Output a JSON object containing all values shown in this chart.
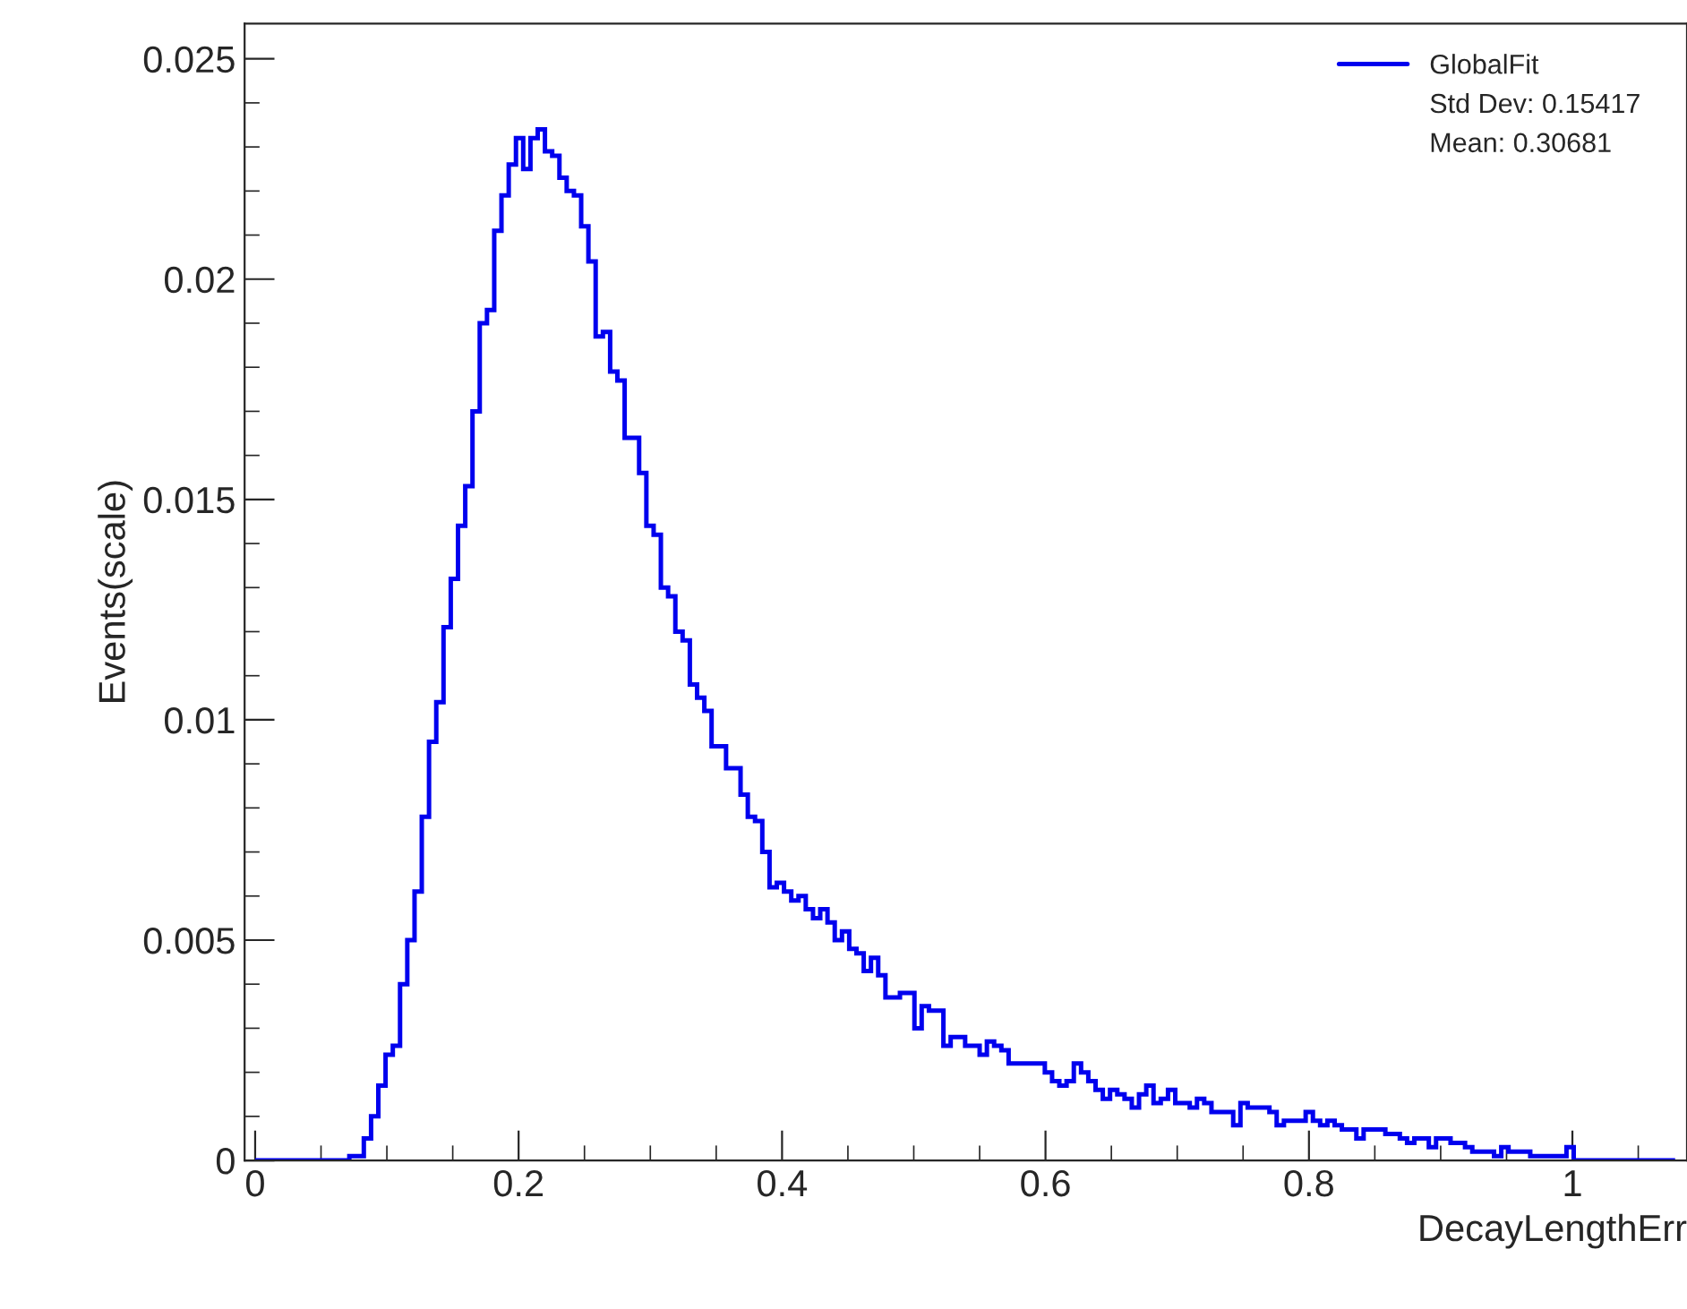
{
  "chart_data": {
    "type": "histogram",
    "xlabel": "DecayLengthErr",
    "ylabel": "Events(scale)",
    "annotations": [
      "Std Dev: 0.15417",
      "Mean: 0.30681"
    ],
    "legend": "top right",
    "xlim": [
      -0.008,
      1.087
    ],
    "xticks": [
      0,
      0.2,
      0.4,
      0.6,
      0.8,
      1
    ],
    "ylim": [
      0,
      0.0258
    ],
    "yticks": [
      0,
      0.005,
      0.01,
      0.015,
      0.02,
      0.025
    ],
    "bins": [
      0,
      0.0055,
      0.011,
      0.0165,
      0.022,
      0.0275,
      0.033,
      0.0385,
      0.044,
      0.0495,
      0.055,
      0.0605,
      0.066,
      0.0715,
      0.077,
      0.0825,
      0.088,
      0.0935,
      0.099,
      0.1045,
      0.11,
      0.1155,
      0.121,
      0.1265,
      0.132,
      0.1375,
      0.143,
      0.1485,
      0.154,
      0.1595,
      0.165,
      0.1705,
      0.176,
      0.1815,
      0.187,
      0.1925,
      0.198,
      0.2035,
      0.209,
      0.2145,
      0.22,
      0.2255,
      0.231,
      0.2365,
      0.242,
      0.2475,
      0.253,
      0.2585,
      0.264,
      0.2695,
      0.275,
      0.2805,
      0.286,
      0.2915,
      0.297,
      0.3025,
      0.308,
      0.3135,
      0.319,
      0.3245,
      0.33,
      0.3355,
      0.341,
      0.3465,
      0.352,
      0.3575,
      0.363,
      0.3685,
      0.374,
      0.3795,
      0.385,
      0.3905,
      0.396,
      0.4015,
      0.407,
      0.4125,
      0.418,
      0.4235,
      0.429,
      0.4345,
      0.44,
      0.4455,
      0.451,
      0.4565,
      0.462,
      0.4675,
      0.473,
      0.4785,
      0.484,
      0.4895,
      0.495,
      0.5005,
      0.506,
      0.5115,
      0.517,
      0.5225,
      0.528,
      0.5335,
      0.539,
      0.5445,
      0.55,
      0.5555,
      0.561,
      0.5665,
      0.572,
      0.5775,
      0.583,
      0.5885,
      0.594,
      0.5995,
      0.605,
      0.6105,
      0.616,
      0.6215,
      0.627,
      0.6325,
      0.638,
      0.6435,
      0.649,
      0.6545,
      0.66,
      0.6655,
      0.671,
      0.6765,
      0.682,
      0.6875,
      0.693,
      0.6985,
      0.704,
      0.7095,
      0.715,
      0.7205,
      0.726,
      0.7315,
      0.737,
      0.7425,
      0.748,
      0.7535,
      0.759,
      0.7645,
      0.77,
      0.7755,
      0.781,
      0.7865,
      0.792,
      0.7975,
      0.803,
      0.8085,
      0.814,
      0.8195,
      0.825,
      0.8305,
      0.836,
      0.8415,
      0.847,
      0.8525,
      0.858,
      0.8635,
      0.869,
      0.8745,
      0.88,
      0.8855,
      0.891,
      0.8965,
      0.902,
      0.9075,
      0.913,
      0.9185,
      0.924,
      0.9295,
      0.935,
      0.9405,
      0.946,
      0.9515,
      0.957,
      0.9625,
      0.968,
      0.9735,
      0.979,
      0.9845,
      0.99,
      0.9955,
      1.001,
      1.0065,
      1.012,
      1.0175,
      1.023,
      1.0285,
      1.034,
      1.0395,
      1.045,
      1.0505,
      1.056,
      1.0615,
      1.067,
      1.0725,
      1.078
    ],
    "series": [
      {
        "name": "GlobalFit",
        "color": "#0000ee",
        "values": [
          0,
          0,
          0,
          0,
          0,
          0,
          0,
          0,
          0,
          0,
          0,
          0,
          0,
          0.0001,
          0.0001,
          0.0005,
          0.001,
          0.0017,
          0.0024,
          0.0026,
          0.004,
          0.005,
          0.0061,
          0.0078,
          0.0095,
          0.0104,
          0.0121,
          0.0132,
          0.0144,
          0.0153,
          0.017,
          0.019,
          0.0193,
          0.0211,
          0.0219,
          0.0226,
          0.0232,
          0.0225,
          0.0232,
          0.0234,
          0.0229,
          0.0228,
          0.0223,
          0.022,
          0.0219,
          0.0212,
          0.0204,
          0.0187,
          0.0188,
          0.0179,
          0.0177,
          0.0164,
          0.0164,
          0.0156,
          0.0144,
          0.0142,
          0.013,
          0.0128,
          0.012,
          0.0118,
          0.0108,
          0.0105,
          0.0102,
          0.0094,
          0.0094,
          0.0089,
          0.0089,
          0.0083,
          0.0078,
          0.0077,
          0.007,
          0.0062,
          0.0063,
          0.0061,
          0.0059,
          0.006,
          0.0057,
          0.0055,
          0.0057,
          0.0054,
          0.005,
          0.0052,
          0.0048,
          0.0047,
          0.0043,
          0.0046,
          0.0042,
          0.0037,
          0.0037,
          0.0038,
          0.0038,
          0.003,
          0.0035,
          0.0034,
          0.0034,
          0.0026,
          0.0028,
          0.0028,
          0.0026,
          0.0026,
          0.0024,
          0.0027,
          0.0026,
          0.0025,
          0.0022,
          0.0022,
          0.0022,
          0.0022,
          0.0022,
          0.002,
          0.0018,
          0.0017,
          0.0018,
          0.0022,
          0.002,
          0.0018,
          0.0016,
          0.0014,
          0.0016,
          0.0015,
          0.0014,
          0.0012,
          0.0015,
          0.0017,
          0.0013,
          0.0014,
          0.0016,
          0.0013,
          0.0013,
          0.0012,
          0.0014,
          0.0013,
          0.0011,
          0.0011,
          0.0011,
          0.0008,
          0.0013,
          0.0012,
          0.0012,
          0.0012,
          0.0011,
          0.0008,
          0.0009,
          0.0009,
          0.0009,
          0.0011,
          0.0009,
          0.0008,
          0.0009,
          0.0008,
          0.0007,
          0.0007,
          0.0005,
          0.0007,
          0.0007,
          0.0007,
          0.0006,
          0.0006,
          0.0005,
          0.0004,
          0.0005,
          0.0005,
          0.0003,
          0.0005,
          0.0005,
          0.0004,
          0.0004,
          0.0003,
          0.0002,
          0.0002,
          0.0002,
          0.0001,
          0.0003,
          0.0002,
          0.0002,
          0.0002,
          0.0001,
          0.0001,
          0.0001,
          0.0001,
          0.0001,
          0.0003,
          0,
          0,
          0,
          0,
          0,
          0,
          0,
          0,
          0,
          0,
          0,
          0,
          0,
          0
        ]
      }
    ]
  }
}
